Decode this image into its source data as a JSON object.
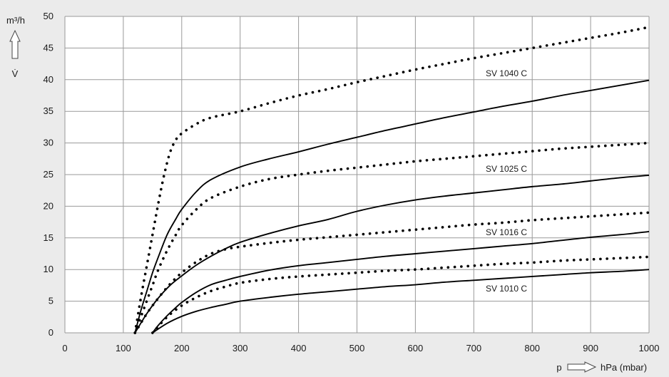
{
  "chart_data": {
    "type": "line",
    "xlim": [
      0,
      1000
    ],
    "ylim": [
      0,
      50
    ],
    "x_ticks": [
      0,
      100,
      200,
      300,
      400,
      500,
      600,
      700,
      800,
      900,
      1000
    ],
    "y_ticks": [
      0,
      5,
      10,
      15,
      20,
      25,
      30,
      35,
      40,
      45,
      50
    ],
    "x_tick_labels": [
      "0",
      "100",
      "200",
      "300",
      "400",
      "500",
      "600",
      "700",
      "800",
      "900",
      "1000"
    ],
    "y_tick_labels": [
      "0",
      "5",
      "10",
      "15",
      "20",
      "25",
      "30",
      "35",
      "40",
      "45",
      "50"
    ],
    "y_unit": "m³/h",
    "y_symbol": "V̇",
    "x_symbol": "p",
    "x_unit": "hPa (mbar)",
    "grid": true,
    "background": "#ffffff",
    "line_color": "#000000",
    "series": [
      {
        "name": "SV 1040 C",
        "style": "dotted",
        "x": [
          120,
          130,
          140,
          150,
          160,
          170,
          180,
          190,
          200,
          225,
          250,
          300,
          350,
          400,
          450,
          500,
          550,
          600,
          650,
          700,
          750,
          800,
          850,
          900,
          950,
          1000
        ],
        "y": [
          0,
          5.5,
          10.5,
          15.5,
          20.5,
          25,
          28.5,
          30.5,
          31.5,
          33,
          34,
          35,
          36.3,
          37.5,
          38.5,
          39.6,
          40.6,
          41.6,
          42.5,
          43.4,
          44.2,
          45,
          45.8,
          46.6,
          47.4,
          48.3
        ]
      },
      {
        "name": "",
        "style": "solid",
        "x": [
          120,
          130,
          140,
          150,
          160,
          175,
          190,
          200,
          225,
          250,
          300,
          350,
          400,
          450,
          500,
          550,
          600,
          650,
          700,
          750,
          800,
          850,
          900,
          950,
          1000
        ],
        "y": [
          0,
          3.5,
          6.5,
          9.5,
          12,
          15.5,
          18,
          19.5,
          22.3,
          24.2,
          26.2,
          27.5,
          28.6,
          29.8,
          30.9,
          32,
          33,
          34,
          34.9,
          35.8,
          36.6,
          37.5,
          38.3,
          39.1,
          39.9
        ]
      },
      {
        "name": "SV 1025 C",
        "style": "dotted",
        "x": [
          120,
          130,
          140,
          150,
          160,
          175,
          190,
          200,
          225,
          250,
          300,
          350,
          400,
          450,
          500,
          550,
          600,
          650,
          700,
          750,
          800,
          850,
          900,
          950,
          1000
        ],
        "y": [
          0,
          2.5,
          5,
          7.5,
          10,
          13,
          15.5,
          17,
          19.5,
          21.3,
          23.1,
          24.3,
          25,
          25.6,
          26.1,
          26.6,
          27.1,
          27.5,
          27.9,
          28.3,
          28.7,
          29.1,
          29.4,
          29.7,
          30
        ]
      },
      {
        "name": "",
        "style": "solid",
        "x": [
          120,
          140,
          160,
          180,
          200,
          225,
          250,
          275,
          300,
          350,
          400,
          450,
          500,
          550,
          600,
          650,
          700,
          750,
          800,
          850,
          900,
          950,
          1000
        ],
        "y": [
          0,
          3,
          5.5,
          7.5,
          9,
          10.7,
          12.1,
          13.3,
          14.3,
          15.7,
          16.9,
          17.9,
          19.2,
          20.2,
          21,
          21.6,
          22.1,
          22.6,
          23.1,
          23.5,
          24,
          24.5,
          24.9
        ]
      },
      {
        "name": "SV 1016 C",
        "style": "dotted",
        "x": [
          120,
          140,
          160,
          180,
          200,
          225,
          250,
          275,
          300,
          350,
          400,
          450,
          500,
          550,
          600,
          650,
          700,
          750,
          800,
          850,
          900,
          950,
          1000
        ],
        "y": [
          0,
          3,
          5.5,
          7.7,
          9.5,
          11.2,
          12.5,
          13.2,
          13.6,
          14.2,
          14.7,
          15.1,
          15.5,
          15.9,
          16.3,
          16.7,
          17.1,
          17.4,
          17.8,
          18.1,
          18.4,
          18.7,
          19
        ]
      },
      {
        "name": "",
        "style": "solid",
        "x": [
          150,
          160,
          175,
          190,
          200,
          225,
          250,
          275,
          300,
          350,
          400,
          450,
          500,
          550,
          600,
          650,
          700,
          750,
          800,
          850,
          900,
          950,
          1000
        ],
        "y": [
          0,
          1.2,
          2.7,
          4,
          4.8,
          6.4,
          7.6,
          8.3,
          8.9,
          9.9,
          10.6,
          11.1,
          11.6,
          12.1,
          12.5,
          12.9,
          13.3,
          13.7,
          14.1,
          14.6,
          15.1,
          15.5,
          16
        ]
      },
      {
        "name": "",
        "style": "dotted",
        "x": [
          150,
          175,
          200,
          225,
          250,
          275,
          300,
          350,
          400,
          450,
          500,
          550,
          600,
          650,
          700,
          750,
          800,
          850,
          900,
          950,
          1000
        ],
        "y": [
          0,
          2.5,
          4.3,
          5.6,
          6.6,
          7.3,
          7.9,
          8.5,
          8.9,
          9.2,
          9.5,
          9.8,
          10,
          10.3,
          10.6,
          10.9,
          11.1,
          11.4,
          11.6,
          11.8,
          12
        ]
      },
      {
        "name": "SV 1010 C",
        "style": "solid",
        "x": [
          150,
          175,
          200,
          225,
          250,
          275,
          300,
          350,
          400,
          450,
          500,
          550,
          600,
          650,
          700,
          750,
          800,
          850,
          900,
          950,
          1000
        ],
        "y": [
          0,
          1.5,
          2.6,
          3.4,
          4,
          4.5,
          5,
          5.6,
          6.1,
          6.5,
          6.9,
          7.3,
          7.6,
          8,
          8.3,
          8.6,
          8.9,
          9.2,
          9.5,
          9.7,
          10
        ]
      }
    ]
  }
}
